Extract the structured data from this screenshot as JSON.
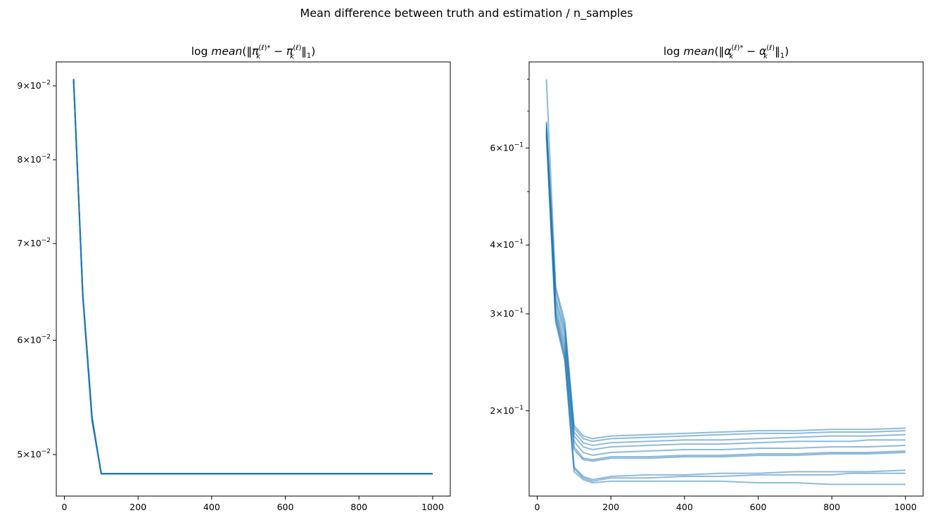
{
  "figure": {
    "suptitle": "Mean difference between truth and estimation / n_samples"
  },
  "chart_data": [
    {
      "type": "line",
      "title": "log mean(‖π_k^(ℓ)* − π_k^(ℓ)‖_1)",
      "title_parts": {
        "prefix": "log",
        "func": "mean",
        "sym": "π",
        "sub": "k",
        "sup": "(ℓ)*",
        "sup2": "(ℓ)",
        "norm_sub": "1"
      },
      "xlabel": "",
      "ylabel": "",
      "yscale": "log",
      "xlim": [
        -22,
        1048
      ],
      "ylim": [
        0.0468,
        0.0935
      ],
      "x_ticks": [
        0,
        200,
        400,
        600,
        800,
        1000
      ],
      "x_tick_labels": [
        "0",
        "200",
        "400",
        "600",
        "800",
        "1000"
      ],
      "y_ticks": [
        0.05,
        0.06,
        0.07,
        0.08,
        0.09
      ],
      "y_tick_labels": [
        {
          "mant": "5",
          "base": "10",
          "exp": "−2"
        },
        {
          "mant": "6",
          "base": "10",
          "exp": "−2"
        },
        {
          "mant": "7",
          "base": "10",
          "exp": "−2"
        },
        {
          "mant": "8",
          "base": "10",
          "exp": "−2"
        },
        {
          "mant": "9",
          "base": "10",
          "exp": "−2"
        }
      ],
      "grid": false,
      "line_color": "#1f77b4",
      "line_alpha": 1.0,
      "x": [
        25,
        50,
        75,
        100,
        125,
        150,
        200,
        250,
        300,
        400,
        500,
        600,
        700,
        800,
        900,
        1000
      ],
      "series": [
        {
          "values": [
            0.091,
            0.0645,
            0.053,
            0.0485,
            0.0485,
            0.0485,
            0.0485,
            0.0485,
            0.0485,
            0.0485,
            0.0485,
            0.0485,
            0.0485,
            0.0485,
            0.0485,
            0.0485
          ]
        },
        {
          "values": [
            0.0908,
            0.0643,
            0.0528,
            0.0485,
            0.0485,
            0.0485,
            0.0485,
            0.0485,
            0.0485,
            0.0485,
            0.0485,
            0.0485,
            0.0485,
            0.0485,
            0.0485,
            0.0485
          ]
        },
        {
          "values": [
            0.0909,
            0.0646,
            0.0531,
            0.0485,
            0.0485,
            0.0485,
            0.0485,
            0.0485,
            0.0485,
            0.0485,
            0.0485,
            0.0485,
            0.0485,
            0.0485,
            0.0485,
            0.0485
          ]
        }
      ]
    },
    {
      "type": "line",
      "title": "log mean(‖α_k^(ℓ)* − α_k^(ℓ)‖_1)",
      "title_parts": {
        "prefix": "log",
        "func": "mean",
        "sym": "α",
        "sub": "k",
        "sup": "(ℓ)*",
        "sup2": "(ℓ)",
        "norm_sub": "1"
      },
      "xlabel": "",
      "ylabel": "",
      "yscale": "log",
      "xlim": [
        -22,
        1048
      ],
      "ylim": [
        0.14,
        0.86
      ],
      "x_ticks": [
        0,
        200,
        400,
        600,
        800,
        1000
      ],
      "x_tick_labels": [
        "0",
        "200",
        "400",
        "600",
        "800",
        "1000"
      ],
      "y_ticks": [
        0.2,
        0.3,
        0.4,
        0.6
      ],
      "y_tick_labels": [
        {
          "mant": "2",
          "base": "10",
          "exp": "−1"
        },
        {
          "mant": "3",
          "base": "10",
          "exp": "−1"
        },
        {
          "mant": "4",
          "base": "10",
          "exp": "−1"
        },
        {
          "mant": "6",
          "base": "10",
          "exp": "−1"
        }
      ],
      "y_minor_ticks": [
        0.5,
        0.7,
        0.8
      ],
      "grid": false,
      "line_color": "#1f77b4",
      "line_alpha": 0.5,
      "x": [
        25,
        50,
        75,
        100,
        125,
        150,
        200,
        300,
        400,
        500,
        600,
        700,
        800,
        850,
        900,
        1000
      ],
      "series": [
        {
          "values": [
            0.8,
            0.336,
            0.29,
            0.188,
            0.18,
            0.178,
            0.18,
            0.181,
            0.182,
            0.183,
            0.184,
            0.184,
            0.185,
            0.185,
            0.185,
            0.186
          ]
        },
        {
          "values": [
            0.67,
            0.33,
            0.285,
            0.186,
            0.178,
            0.176,
            0.178,
            0.179,
            0.18,
            0.181,
            0.182,
            0.182,
            0.183,
            0.183,
            0.183,
            0.184
          ]
        },
        {
          "values": [
            0.665,
            0.32,
            0.28,
            0.183,
            0.175,
            0.173,
            0.175,
            0.176,
            0.177,
            0.177,
            0.178,
            0.179,
            0.18,
            0.18,
            0.18,
            0.181
          ]
        },
        {
          "values": [
            0.66,
            0.315,
            0.275,
            0.18,
            0.172,
            0.17,
            0.172,
            0.173,
            0.174,
            0.174,
            0.175,
            0.176,
            0.176,
            0.176,
            0.177,
            0.177
          ]
        },
        {
          "values": [
            0.655,
            0.308,
            0.268,
            0.176,
            0.168,
            0.166,
            0.168,
            0.169,
            0.17,
            0.17,
            0.171,
            0.171,
            0.172,
            0.172,
            0.172,
            0.173
          ]
        },
        {
          "values": [
            0.65,
            0.303,
            0.262,
            0.172,
            0.164,
            0.163,
            0.165,
            0.165,
            0.166,
            0.166,
            0.167,
            0.167,
            0.168,
            0.168,
            0.168,
            0.169
          ]
        },
        {
          "values": [
            0.645,
            0.299,
            0.257,
            0.17,
            0.163,
            0.162,
            0.164,
            0.164,
            0.165,
            0.165,
            0.166,
            0.166,
            0.167,
            0.167,
            0.167,
            0.168
          ]
        },
        {
          "values": [
            0.64,
            0.296,
            0.252,
            0.158,
            0.152,
            0.15,
            0.152,
            0.153,
            0.153,
            0.154,
            0.154,
            0.155,
            0.155,
            0.155,
            0.155,
            0.156
          ]
        },
        {
          "values": [
            0.635,
            0.293,
            0.249,
            0.157,
            0.151,
            0.149,
            0.151,
            0.151,
            0.152,
            0.152,
            0.153,
            0.153,
            0.153,
            0.154,
            0.154,
            0.154
          ]
        },
        {
          "values": [
            0.63,
            0.29,
            0.246,
            0.155,
            0.15,
            0.148,
            0.149,
            0.149,
            0.149,
            0.149,
            0.148,
            0.148,
            0.147,
            0.147,
            0.147,
            0.147
          ]
        }
      ]
    }
  ]
}
